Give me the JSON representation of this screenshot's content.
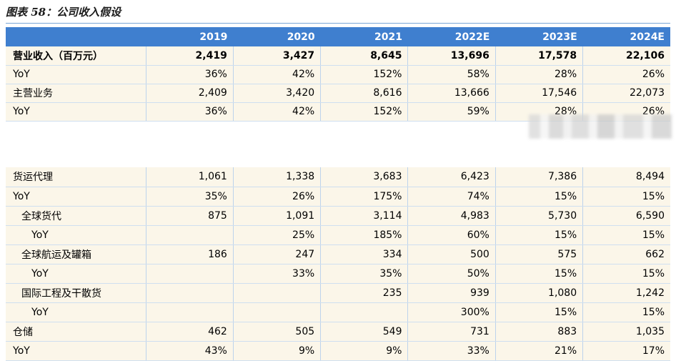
{
  "title": "图表 58：公司收入假设",
  "columns": [
    "2019",
    "2020",
    "2021",
    "2022E",
    "2023E",
    "2024E"
  ],
  "table1": [
    {
      "label": "营业收入（百万元）",
      "values": [
        "2,419",
        "3,427",
        "8,645",
        "13,696",
        "17,578",
        "22,106"
      ],
      "bold": true
    },
    {
      "label": "YoY",
      "values": [
        "36%",
        "42%",
        "152%",
        "58%",
        "28%",
        "26%"
      ]
    },
    {
      "label": "主营业务",
      "values": [
        "2,409",
        "3,420",
        "8,616",
        "13,666",
        "17,546",
        "22,073"
      ]
    },
    {
      "label": "YoY",
      "values": [
        "36%",
        "42%",
        "152%",
        "59%",
        "28%",
        "26%"
      ]
    }
  ],
  "table2": [
    {
      "label": "货运代理",
      "values": [
        "1,061",
        "1,338",
        "3,683",
        "6,423",
        "7,386",
        "8,494"
      ],
      "indent": 0
    },
    {
      "label": "YoY",
      "values": [
        "35%",
        "26%",
        "175%",
        "74%",
        "15%",
        "15%"
      ],
      "indent": 0
    },
    {
      "label": "全球货代",
      "values": [
        "875",
        "1,091",
        "3,114",
        "4,983",
        "5,730",
        "6,590"
      ],
      "indent": 1
    },
    {
      "label": "YoY",
      "values": [
        "",
        "25%",
        "185%",
        "60%",
        "15%",
        "15%"
      ],
      "indent": 2
    },
    {
      "label": "全球航运及罐箱",
      "values": [
        "186",
        "247",
        "334",
        "500",
        "575",
        "662"
      ],
      "indent": 1
    },
    {
      "label": "YoY",
      "values": [
        "",
        "33%",
        "35%",
        "50%",
        "15%",
        "15%"
      ],
      "indent": 2
    },
    {
      "label": "国际工程及干散货",
      "values": [
        "",
        "",
        "235",
        "939",
        "1,080",
        "1,242"
      ],
      "indent": 1
    },
    {
      "label": "YoY",
      "values": [
        "",
        "",
        "",
        "300%",
        "15%",
        "15%"
      ],
      "indent": 2
    },
    {
      "label": "仓储",
      "values": [
        "462",
        "505",
        "549",
        "731",
        "883",
        "1,035"
      ],
      "indent": 0
    },
    {
      "label": "YoY",
      "values": [
        "43%",
        "9%",
        "9%",
        "33%",
        "21%",
        "17%"
      ],
      "indent": 0
    }
  ]
}
